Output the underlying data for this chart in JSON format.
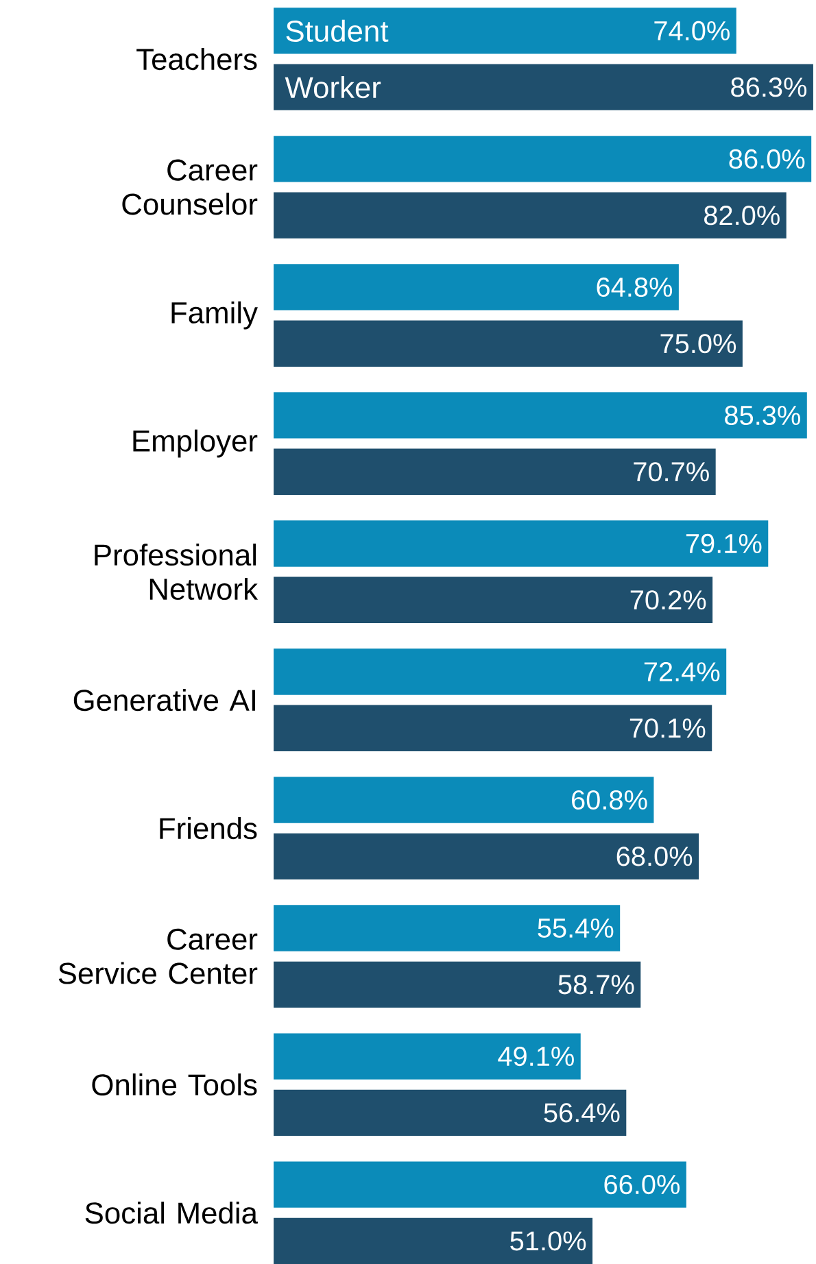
{
  "chart_data": {
    "type": "bar",
    "orientation": "horizontal",
    "data_labels": true,
    "categories": [
      "Teachers",
      "Career Counselor",
      "Family",
      "Employer",
      "Professional Network",
      "Generative AI",
      "Friends",
      "Career Service Center",
      "Online Tools",
      "Social Media"
    ],
    "series": [
      {
        "name": "Student",
        "color": "#0b8bb9",
        "values": [
          74.0,
          86.0,
          64.8,
          85.3,
          79.1,
          72.4,
          60.8,
          55.4,
          49.1,
          66.0
        ],
        "value_labels": [
          "74.0%",
          "86.0%",
          "64.8%",
          "85.3%",
          "79.1%",
          "72.4%",
          "60.8%",
          "55.4%",
          "49.1%",
          "66.0%"
        ]
      },
      {
        "name": "Worker",
        "color": "#1f4f6d",
        "values": [
          86.3,
          82.0,
          75.0,
          70.7,
          70.2,
          70.1,
          68.0,
          58.7,
          56.4,
          51.0
        ],
        "value_labels": [
          "86.3%",
          "82.0%",
          "75.0%",
          "70.7%",
          "70.2%",
          "70.1%",
          "68.0%",
          "58.7%",
          "56.4%",
          "51.0%"
        ]
      }
    ]
  }
}
